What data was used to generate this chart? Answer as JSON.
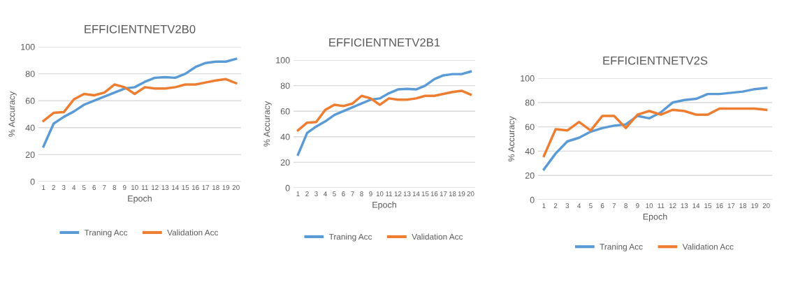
{
  "chart_data": [
    {
      "type": "line",
      "title": "EFFICIENTNETV2B0",
      "xlabel": "Epoch",
      "ylabel": "% Accuracy",
      "categories": [
        "1",
        "2",
        "3",
        "4",
        "5",
        "6",
        "7",
        "8",
        "9",
        "10",
        "11",
        "12",
        "13",
        "14",
        "15",
        "16",
        "17",
        "18",
        "19",
        "20"
      ],
      "ylim": [
        0,
        100
      ],
      "yticks": [
        0,
        20,
        40,
        60,
        80,
        100
      ],
      "grid": "y",
      "legend": "bottom",
      "marker": "none",
      "line_style": "solid",
      "series": [
        {
          "name": "Traning Acc",
          "color": "#5b9bd5",
          "values": [
            26,
            43,
            48,
            52,
            57,
            60,
            63,
            66,
            69,
            70,
            74,
            77,
            77.5,
            77,
            80,
            85,
            88,
            89,
            89,
            91
          ]
        },
        {
          "name": "Validation Acc",
          "color": "#ed7d31",
          "values": [
            45,
            51,
            51.5,
            61,
            65,
            64,
            66,
            72,
            70,
            65,
            70,
            69,
            69,
            70,
            72,
            72,
            73.5,
            75,
            76,
            73
          ]
        }
      ]
    },
    {
      "type": "line",
      "title": "EFFICIENTNETV2B1",
      "xlabel": "Epoch",
      "ylabel": "% Accuracy",
      "categories": [
        "1",
        "2",
        "3",
        "4",
        "5",
        "6",
        "7",
        "8",
        "9",
        "10",
        "11",
        "12",
        "13",
        "14",
        "15",
        "16",
        "17",
        "18",
        "19",
        "20"
      ],
      "ylim": [
        0,
        100
      ],
      "yticks": [
        0,
        20,
        40,
        60,
        80,
        100
      ],
      "grid": "y",
      "legend": "bottom",
      "marker": "none",
      "line_style": "solid",
      "series": [
        {
          "name": "Traning Acc",
          "color": "#5b9bd5",
          "values": [
            26,
            43,
            48,
            52,
            57,
            60,
            63,
            66,
            69,
            70,
            74,
            77,
            77.5,
            77,
            80,
            85,
            88,
            89,
            89,
            91
          ]
        },
        {
          "name": "Validation Acc",
          "color": "#ed7d31",
          "values": [
            45,
            51,
            51.5,
            61,
            65,
            64,
            66,
            72,
            70,
            65,
            70,
            69,
            69,
            70,
            72,
            72,
            73.5,
            75,
            76,
            73
          ]
        }
      ]
    },
    {
      "type": "line",
      "title": "EFFICIENTNETV2S",
      "xlabel": "Epoch",
      "ylabel": "% Accuracy",
      "categories": [
        "1",
        "2",
        "3",
        "4",
        "5",
        "6",
        "7",
        "8",
        "9",
        "10",
        "11",
        "12",
        "13",
        "14",
        "15",
        "16",
        "17",
        "18",
        "19",
        "20"
      ],
      "ylim": [
        0,
        100
      ],
      "yticks": [
        0,
        20,
        40,
        60,
        80,
        100
      ],
      "grid": "y",
      "legend": "bottom",
      "marker": "none",
      "line_style": "solid",
      "series": [
        {
          "name": "Traning Acc",
          "color": "#5b9bd5",
          "values": [
            25,
            38,
            48,
            51,
            56,
            59,
            61,
            62,
            69,
            67,
            72,
            80,
            82,
            83,
            87,
            87,
            88,
            89,
            91,
            92
          ]
        },
        {
          "name": "Validation Acc",
          "color": "#ed7d31",
          "values": [
            36,
            58,
            57,
            64,
            57,
            69,
            69,
            59,
            70,
            73,
            70,
            74,
            73,
            70,
            70,
            75,
            75,
            75,
            75,
            74
          ]
        }
      ]
    }
  ]
}
